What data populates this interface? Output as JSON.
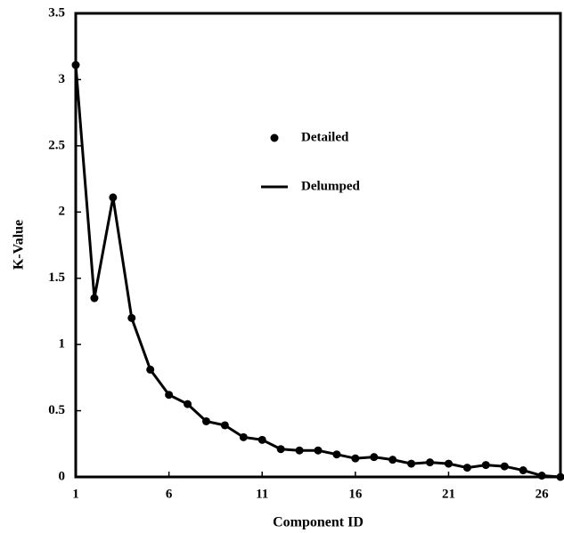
{
  "chart_data": {
    "type": "line",
    "x_label": "Component ID",
    "y_label": "K-Value",
    "x": [
      1,
      2,
      3,
      4,
      5,
      6,
      7,
      8,
      9,
      10,
      11,
      12,
      13,
      14,
      15,
      16,
      17,
      18,
      19,
      20,
      21,
      22,
      23,
      24,
      25,
      26,
      27
    ],
    "series": [
      {
        "name": "Detailed",
        "color": "#000000",
        "mode": "markers",
        "values": [
          3.11,
          1.35,
          2.11,
          1.2,
          0.81,
          0.62,
          0.55,
          0.42,
          0.39,
          0.3,
          0.28,
          0.21,
          0.2,
          0.2,
          0.17,
          0.14,
          0.15,
          0.13,
          0.1,
          0.11,
          0.1,
          0.07,
          0.09,
          0.08,
          0.05,
          0.01,
          0.0
        ]
      },
      {
        "name": "Delumped",
        "color": "#000000",
        "mode": "lines",
        "values": [
          3.11,
          1.35,
          2.11,
          1.2,
          0.81,
          0.62,
          0.55,
          0.42,
          0.39,
          0.3,
          0.28,
          0.21,
          0.2,
          0.2,
          0.17,
          0.14,
          0.15,
          0.13,
          0.1,
          0.11,
          0.1,
          0.07,
          0.09,
          0.08,
          0.05,
          0.01,
          0.0
        ]
      }
    ],
    "xlim": [
      1,
      27
    ],
    "xticks": [
      1,
      6,
      11,
      16,
      21,
      26
    ],
    "ylim": [
      0,
      3.5
    ],
    "yticks": [
      0,
      0.5,
      1,
      1.5,
      2,
      2.5,
      3,
      3.5
    ],
    "grid": false,
    "legend": "upper center"
  }
}
